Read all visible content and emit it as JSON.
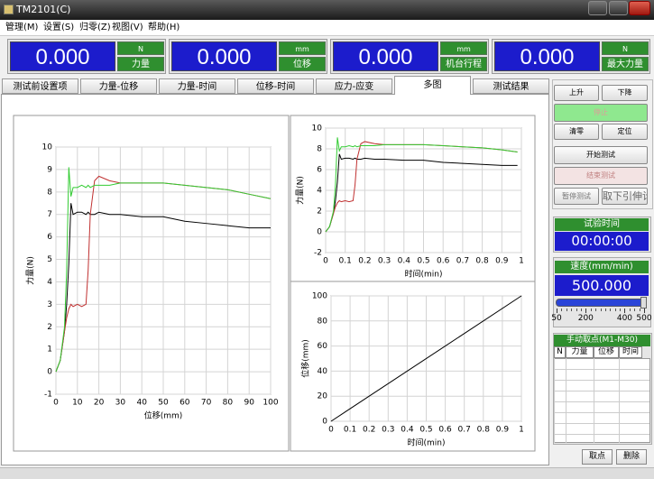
{
  "window": {
    "title": "TM2101(C)"
  },
  "menu": [
    "管理(M)",
    "设置(S)",
    "归零(Z)",
    "视图(V)",
    "帮助(H)"
  ],
  "readouts": [
    {
      "value": "0.000",
      "unit": "N",
      "label": "力量"
    },
    {
      "value": "0.000",
      "unit": "mm",
      "label": "位移"
    },
    {
      "value": "0.000",
      "unit": "mm",
      "label": "机台行程"
    },
    {
      "value": "0.000",
      "unit": "N",
      "label": "最大力量"
    }
  ],
  "tabs": {
    "items": [
      "测试前设置项",
      "力量-位移",
      "力量-时间",
      "位移-时间",
      "应力-应变",
      "多图",
      "测试结果"
    ],
    "active": 5
  },
  "buttons": [
    "上升",
    "下降",
    "停止",
    "清零",
    "定位",
    "开始测试",
    "结束测试",
    "暂停测试",
    "取下引伸计"
  ],
  "test_time": {
    "label": "试验时间",
    "value": "00:00:00"
  },
  "speed": {
    "label": "速度(mm/min)",
    "value": "500.000",
    "ticks": [
      50,
      200,
      400,
      500
    ]
  },
  "manual_points": {
    "title": "手动取点(M1-M30)",
    "columns": [
      "N",
      "力量",
      "位移",
      "时间"
    ],
    "buttons": [
      "取点",
      "删除"
    ]
  },
  "chart_data": [
    {
      "type": "line",
      "x_label": "位移(mm)",
      "y_label": "力量(N)",
      "x": [
        0,
        2,
        4,
        5,
        6,
        7,
        8,
        10,
        12,
        14,
        15,
        16,
        18,
        20,
        25,
        30,
        40,
        50,
        60,
        70,
        80,
        90,
        100
      ],
      "series": [
        {
          "color": "#000000",
          "values": [
            0,
            0.5,
            1.8,
            3.0,
            4.8,
            7.5,
            7.0,
            7.1,
            7.1,
            7.0,
            7.1,
            7.0,
            7.0,
            7.1,
            7.0,
            7.0,
            6.9,
            6.9,
            6.7,
            6.6,
            6.5,
            6.4,
            6.4
          ]
        },
        {
          "color": "#c03030",
          "values": [
            0,
            0.5,
            1.8,
            2.4,
            2.8,
            3.0,
            2.9,
            3.0,
            2.9,
            3.0,
            4.5,
            7.0,
            8.5,
            8.7,
            8.5,
            8.4,
            8.4,
            8.4,
            8.3,
            8.2,
            8.1,
            7.9,
            7.7
          ]
        },
        {
          "color": "#33cc33",
          "values": [
            0,
            0.5,
            2.0,
            4.5,
            9.1,
            7.8,
            8.2,
            8.2,
            8.3,
            8.2,
            8.3,
            8.2,
            8.3,
            8.3,
            8.3,
            8.4,
            8.4,
            8.4,
            8.3,
            8.2,
            8.1,
            7.9,
            7.7
          ]
        }
      ],
      "xlim": [
        0,
        100
      ],
      "ylim": [
        -1,
        10
      ],
      "xticks": [
        0,
        10,
        20,
        30,
        40,
        50,
        60,
        70,
        80,
        90,
        100
      ],
      "yticks": [
        -1,
        0,
        1,
        2,
        3,
        4,
        5,
        6,
        7,
        8,
        9,
        10
      ],
      "grid": true
    },
    {
      "type": "line",
      "x_label": "时间(min)",
      "y_label": "力量(N)",
      "x": [
        0,
        0.02,
        0.04,
        0.05,
        0.06,
        0.07,
        0.08,
        0.1,
        0.12,
        0.14,
        0.15,
        0.16,
        0.18,
        0.2,
        0.25,
        0.3,
        0.4,
        0.5,
        0.6,
        0.7,
        0.8,
        0.9,
        0.98
      ],
      "series": [
        {
          "color": "#000000",
          "values": [
            0,
            0.5,
            1.8,
            3.0,
            4.8,
            7.5,
            7.0,
            7.1,
            7.1,
            7.0,
            7.1,
            7.0,
            7.0,
            7.1,
            7.0,
            7.0,
            6.9,
            6.9,
            6.7,
            6.6,
            6.5,
            6.4,
            6.4
          ]
        },
        {
          "color": "#c03030",
          "values": [
            0,
            0.5,
            1.8,
            2.4,
            2.8,
            3.0,
            2.9,
            3.0,
            2.9,
            3.0,
            4.5,
            7.0,
            8.5,
            8.7,
            8.5,
            8.4,
            8.4,
            8.4,
            8.3,
            8.2,
            8.1,
            7.9,
            7.7
          ]
        },
        {
          "color": "#33cc33",
          "values": [
            0,
            0.5,
            2.0,
            4.5,
            9.1,
            7.8,
            8.2,
            8.2,
            8.3,
            8.2,
            8.3,
            8.2,
            8.3,
            8.3,
            8.3,
            8.4,
            8.4,
            8.4,
            8.3,
            8.2,
            8.1,
            7.9,
            7.7
          ]
        }
      ],
      "xlim": [
        0,
        1
      ],
      "ylim": [
        -2,
        10
      ],
      "xticks": [
        0,
        0.1,
        0.2,
        0.3,
        0.4,
        0.5,
        0.6,
        0.7,
        0.8,
        0.9,
        1
      ],
      "yticks": [
        -2,
        0,
        2,
        4,
        6,
        8,
        10
      ],
      "grid": true
    },
    {
      "type": "line",
      "x_label": "时间(min)",
      "y_label": "位移(mm)",
      "x": [
        0,
        1
      ],
      "series": [
        {
          "color": "#000000",
          "values": [
            0,
            100
          ]
        }
      ],
      "xlim": [
        0,
        1
      ],
      "ylim": [
        0,
        100
      ],
      "xticks": [
        0,
        0.1,
        0.2,
        0.3,
        0.4,
        0.5,
        0.6,
        0.7,
        0.8,
        0.9,
        1
      ],
      "yticks": [
        0,
        20,
        40,
        60,
        80,
        100
      ],
      "grid": true
    }
  ]
}
